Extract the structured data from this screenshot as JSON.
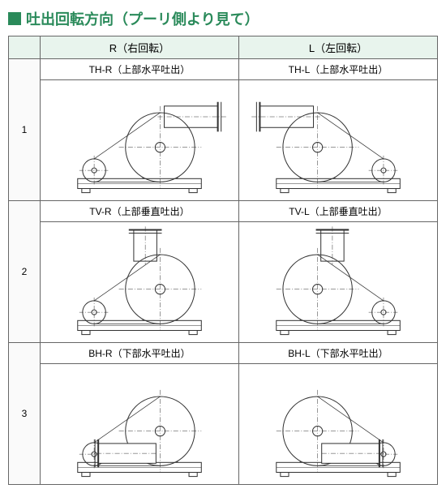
{
  "title": "吐出回転方向（プーリ側より見て）",
  "columns": {
    "left_header": "R（右回転）",
    "right_header": "L（左回転）"
  },
  "rows": [
    {
      "num": "1",
      "left_label": "TH-R（上部水平吐出）",
      "right_label": "TH-L（上部水平吐出）",
      "type": "TH"
    },
    {
      "num": "2",
      "left_label": "TV-R（上部垂直吐出）",
      "right_label": "TV-L（上部垂直吐出）",
      "type": "TV"
    },
    {
      "num": "3",
      "left_label": "BH-R（下部水平吐出）",
      "right_label": "BH-L（下部水平吐出）",
      "type": "BH"
    }
  ],
  "colors": {
    "accent": "#2a8a5a",
    "header_bg": "#e8f4ed",
    "border": "#666666",
    "line": "#333333"
  }
}
